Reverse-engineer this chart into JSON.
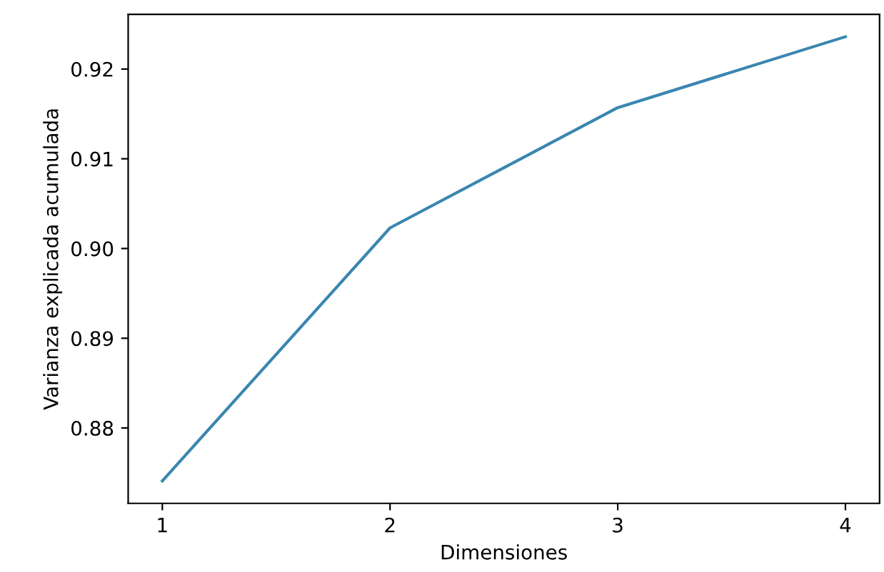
{
  "chart_data": {
    "type": "line",
    "xlabel": "Dimensiones",
    "ylabel": "Varianza explicada acumulada",
    "x": [
      1,
      2,
      3,
      4
    ],
    "series": [
      {
        "color": "#3a86b0",
        "values": [
          0.8741,
          0.9023,
          0.9157,
          0.9236
        ]
      }
    ],
    "xlim": [
      0.85,
      4.15
    ],
    "xticks": [
      1,
      2,
      3,
      4
    ],
    "ylim": [
      0.8716,
      0.9261
    ],
    "yticks": [
      {
        "value": 0.88,
        "label": "0.88"
      },
      {
        "value": 0.89,
        "label": "0.89"
      },
      {
        "value": 0.9,
        "label": "0.90"
      },
      {
        "value": 0.91,
        "label": "0.91"
      },
      {
        "value": 0.92,
        "label": "0.92"
      }
    ],
    "grid": false,
    "marker": "none",
    "line_style": "solid"
  }
}
